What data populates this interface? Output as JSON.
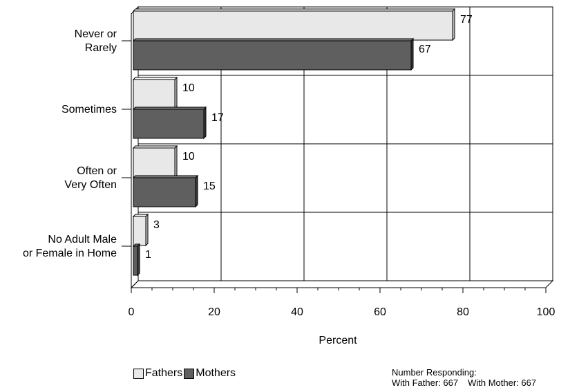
{
  "chart_data": {
    "type": "bar",
    "orientation": "horizontal",
    "categories": [
      "Never or\nRarely",
      "Sometimes",
      "Often or\nVery Often",
      "No Adult Male\nor Female in Home"
    ],
    "series": [
      {
        "name": "Fathers",
        "values": [
          77,
          10,
          10,
          3
        ],
        "color": "#e8e8e8"
      },
      {
        "name": "Mothers",
        "values": [
          67,
          17,
          15,
          1
        ],
        "color": "#5f5f5f"
      }
    ],
    "xlabel": "Percent",
    "xlim": [
      0,
      100
    ],
    "xticks": [
      0,
      20,
      40,
      60,
      80,
      100
    ],
    "grid": true,
    "legend_position": "bottom-left"
  },
  "note": {
    "title": "Number Responding:",
    "father": "With Father:  667",
    "mother": "With Mother:  667"
  }
}
